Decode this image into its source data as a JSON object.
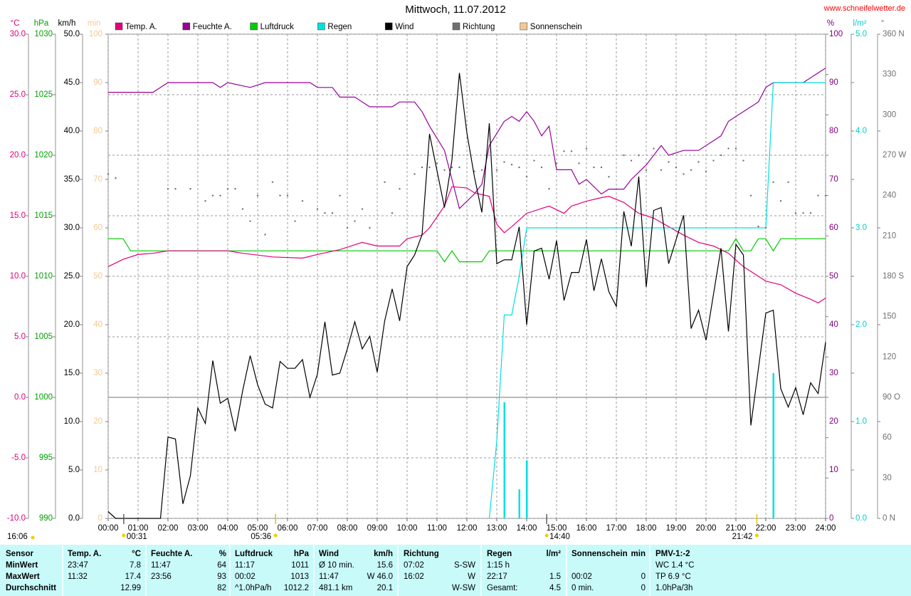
{
  "chart_data": {
    "type": "line",
    "title": "Mittwoch, 11.07.2012",
    "source": "www.schneifelwetter.de",
    "corner_label": "16:06",
    "xlim": [
      0,
      24
    ],
    "xticks": [
      {
        "value": 0,
        "label": "00:00"
      },
      {
        "value": 1,
        "label": "01:00"
      },
      {
        "value": 2,
        "label": "02:00"
      },
      {
        "value": 3,
        "label": "03:00"
      },
      {
        "value": 4,
        "label": "04:00"
      },
      {
        "value": 5,
        "label": "05:00"
      },
      {
        "value": 6,
        "label": "06:00"
      },
      {
        "value": 7,
        "label": "07:00"
      },
      {
        "value": 8,
        "label": "08:00"
      },
      {
        "value": 9,
        "label": "09:00"
      },
      {
        "value": 10,
        "label": "10:00"
      },
      {
        "value": 11,
        "label": "11:00"
      },
      {
        "value": 12,
        "label": "12:00"
      },
      {
        "value": 13,
        "label": "13:00"
      },
      {
        "value": 14,
        "label": "14:00"
      },
      {
        "value": 15,
        "label": "15:00"
      },
      {
        "value": 16,
        "label": "16:00"
      },
      {
        "value": 17,
        "label": "17:00"
      },
      {
        "value": 18,
        "label": "18:00"
      },
      {
        "value": 19,
        "label": "19:00"
      },
      {
        "value": 20,
        "label": "20:00"
      },
      {
        "value": 21,
        "label": "21:00"
      },
      {
        "value": 22,
        "label": "22:00"
      },
      {
        "value": 23,
        "label": "23:00"
      },
      {
        "value": 24,
        "label": "24:00"
      }
    ],
    "grid": true,
    "sun_events": [
      {
        "value": 0.52,
        "label": "00:31"
      },
      {
        "value": 5.6,
        "label": "05:36"
      },
      {
        "value": 14.67,
        "label": "14:40"
      },
      {
        "value": 21.7,
        "label": "21:42"
      }
    ],
    "axes": [
      {
        "unit": "°C",
        "color": "#e0007a",
        "side": "left",
        "lim": [
          -10,
          30
        ],
        "grid": true,
        "ticks": [
          {
            "value": 30,
            "label": "30.0"
          },
          {
            "value": 25,
            "label": "25.0"
          },
          {
            "value": 20,
            "label": "20.0"
          },
          {
            "value": 15,
            "label": "15.0"
          },
          {
            "value": 10,
            "label": "10.0"
          },
          {
            "value": 5,
            "label": "5.0"
          },
          {
            "value": 0,
            "label": "0.0"
          },
          {
            "value": -5,
            "label": "-5.0"
          },
          {
            "value": -10,
            "label": "-10.0"
          }
        ]
      },
      {
        "unit": "hPa",
        "color": "#00a000",
        "side": "left",
        "lim": [
          990,
          1030
        ],
        "ticks": [
          1030,
          1025,
          1020,
          1015,
          1010,
          1005,
          1000,
          995,
          990
        ]
      },
      {
        "unit": "km/h",
        "color": "#000000",
        "side": "left",
        "lim": [
          0,
          50
        ],
        "ticks": [
          {
            "value": 50,
            "label": "50.0"
          },
          {
            "value": 45,
            "label": "45.0"
          },
          {
            "value": 40,
            "label": "40.0"
          },
          {
            "value": 35,
            "label": "35.0"
          },
          {
            "value": 30,
            "label": "30.0"
          },
          {
            "value": 25,
            "label": "25.0"
          },
          {
            "value": 20,
            "label": "20.0"
          },
          {
            "value": 15,
            "label": "15.0"
          },
          {
            "value": 10,
            "label": "10.0"
          },
          {
            "value": 5,
            "label": "5.0"
          },
          {
            "value": 0,
            "label": "0.0"
          }
        ]
      },
      {
        "unit": "min",
        "color": "#f5c890",
        "side": "left",
        "lim": [
          0,
          100
        ],
        "ticks": [
          100,
          90,
          80,
          70,
          60,
          50,
          40,
          30,
          20,
          10,
          0
        ]
      },
      {
        "unit": "%",
        "color": "#800080",
        "side": "right",
        "lim": [
          0,
          100
        ],
        "ticks": [
          100,
          90,
          80,
          70,
          60,
          50,
          40,
          30,
          20,
          10,
          0
        ]
      },
      {
        "unit": "l/m²",
        "color": "#00d0d0",
        "side": "right",
        "lim": [
          0,
          5
        ],
        "ticks": [
          {
            "value": 5,
            "label": "5.0"
          },
          {
            "value": 4,
            "label": "4.0"
          },
          {
            "value": 3,
            "label": "3.0"
          },
          {
            "value": 2,
            "label": "2.0"
          },
          {
            "value": 1,
            "label": "1.0"
          },
          {
            "value": 0,
            "label": "0.0"
          }
        ]
      },
      {
        "unit": "°",
        "color": "#707070",
        "side": "right",
        "lim": [
          0,
          360
        ],
        "ticks": [
          {
            "value": 360,
            "label": "360 N"
          },
          330,
          300,
          {
            "value": 270,
            "label": "270 W"
          },
          240,
          210,
          {
            "value": 180,
            "label": "180 S"
          },
          150,
          120,
          {
            "value": 90,
            "label": "90 O"
          },
          60,
          30,
          {
            "value": 0,
            "label": "0 N"
          }
        ]
      }
    ],
    "series": [
      {
        "name": "Temp. A.",
        "color": "#e0007a",
        "axis": "°C",
        "style": "line",
        "x": [
          0,
          0.5,
          1,
          1.5,
          2,
          4,
          4.5,
          5.5,
          6.5,
          7,
          7.75,
          8.5,
          9,
          9.75,
          10,
          10.5,
          10.75,
          11.25,
          11.5,
          12,
          12.25,
          12.75,
          13,
          13.25,
          13.5,
          14,
          14.5,
          14.75,
          15.25,
          15.5,
          16,
          16.5,
          16.75,
          17.25,
          17.75,
          18.25,
          18.75,
          19.25,
          19.75,
          20.25,
          20.75,
          21.25,
          21.75,
          22,
          22.5,
          23,
          23.5,
          23.75,
          24
        ],
        "values": [
          10.8,
          11.4,
          11.8,
          11.9,
          12.1,
          12.1,
          11.9,
          11.6,
          11.5,
          11.8,
          12.2,
          12.8,
          12.5,
          12.5,
          13.1,
          13.4,
          14.0,
          15.8,
          17.4,
          17.3,
          16.9,
          16.6,
          14.3,
          13.6,
          14.1,
          15.2,
          15.6,
          15.8,
          15.2,
          15.8,
          16.2,
          16.5,
          16.6,
          16.1,
          15.2,
          14.8,
          14.1,
          13.4,
          12.8,
          12.5,
          11.9,
          10.8,
          10.0,
          9.6,
          9.3,
          8.6,
          8.1,
          7.8,
          8.2
        ]
      },
      {
        "name": "Feuchte A.",
        "color": "#990099",
        "axis": "%",
        "style": "line",
        "x": [
          0,
          1.5,
          2,
          3.5,
          3.75,
          4,
          4.75,
          5.25,
          6.75,
          7,
          7.5,
          7.75,
          8.25,
          8.75,
          9.5,
          9.75,
          10.25,
          10.5,
          10.75,
          11.25,
          11.5,
          11.75,
          12.25,
          12.5,
          12.75,
          13.25,
          13.5,
          13.75,
          14,
          14.25,
          14.5,
          14.75,
          15,
          15.5,
          15.75,
          16,
          16.5,
          16.75,
          17.25,
          17.5,
          18,
          18.5,
          18.75,
          19.25,
          19.75,
          20.25,
          20.5,
          20.75,
          21.25,
          21.75,
          22,
          22.25,
          23.25,
          23.75,
          24
        ],
        "values": [
          88,
          88,
          90,
          90,
          89,
          90,
          89,
          90,
          90,
          89,
          89,
          87,
          87,
          85,
          85,
          86,
          86,
          84,
          81,
          76,
          70,
          64,
          67,
          69,
          77,
          82,
          83,
          82,
          84,
          82,
          79,
          81,
          72,
          72,
          69,
          70,
          67,
          68,
          68,
          70,
          73,
          77,
          75,
          76,
          76,
          78,
          79,
          82,
          84,
          86,
          89,
          90,
          90,
          92,
          93
        ]
      },
      {
        "name": "Luftdruck",
        "color": "#00cc00",
        "axis": "hPa",
        "style": "line",
        "x": [
          0,
          0.5,
          0.75,
          11,
          11.25,
          11.5,
          11.75,
          12.5,
          12.75,
          20.75,
          21,
          21.25,
          21.5,
          21.75,
          22,
          22.25,
          22.5,
          24
        ],
        "values": [
          1013.1,
          1013.1,
          1012.1,
          1012.1,
          1011.2,
          1012.1,
          1011.2,
          1011.2,
          1012.1,
          1012.1,
          1013.1,
          1012.1,
          1012.1,
          1013.1,
          1013.1,
          1012.1,
          1013.1,
          1013.1
        ]
      },
      {
        "name": "Regen",
        "color": "#00e0e0",
        "axis": "l/m²",
        "style": "line",
        "x": [
          12.75,
          13,
          13.25,
          13.5,
          13.75,
          14,
          22,
          22.25,
          24
        ],
        "values": [
          0,
          0.8,
          2.1,
          2.1,
          2.5,
          3.0,
          3.0,
          4.5,
          4.5
        ],
        "bars": {
          "x": [
            13.25,
            13.75,
            14,
            22.25
          ],
          "values": [
            1.2,
            0.3,
            0.6,
            1.5
          ]
        }
      },
      {
        "name": "Wind",
        "color": "#000000",
        "axis": "km/h",
        "style": "line",
        "x": [
          0,
          0.25,
          1.75,
          2,
          2.25,
          2.5,
          2.75,
          3,
          3.25,
          3.5,
          3.75,
          4,
          4.25,
          4.5,
          4.75,
          5,
          5.25,
          5.5,
          5.75,
          6,
          6.25,
          6.5,
          6.75,
          7,
          7.25,
          7.5,
          7.75,
          8,
          8.25,
          8.5,
          8.75,
          9,
          9.25,
          9.5,
          9.75,
          10,
          10.25,
          10.5,
          10.75,
          11.25,
          11.5,
          11.75,
          12,
          12.25,
          12.5,
          12.75,
          13,
          13.25,
          13.5,
          13.75,
          14,
          14.25,
          14.5,
          14.75,
          15,
          15.25,
          15.5,
          15.75,
          16,
          16.25,
          16.5,
          16.75,
          17,
          17.25,
          17.5,
          17.75,
          18,
          18.25,
          18.5,
          18.75,
          19.25,
          19.5,
          19.75,
          20,
          20.5,
          20.75,
          21,
          21.25,
          21.5,
          22,
          22.25,
          22.5,
          22.75,
          23,
          23.25,
          23.5,
          23.75,
          24
        ],
        "values": [
          0.7,
          0,
          0,
          8.4,
          8.2,
          1.5,
          4.4,
          11.4,
          9.8,
          16.3,
          11.9,
          12.4,
          9.0,
          13.2,
          16.8,
          13.8,
          11.8,
          11.4,
          16.2,
          15.5,
          15.5,
          16.4,
          12.5,
          14.9,
          20.3,
          14.8,
          15.0,
          17.5,
          20.3,
          17.5,
          18.8,
          15.1,
          20.4,
          23.7,
          20.4,
          26.0,
          27.2,
          29.3,
          39.7,
          32.1,
          37.0,
          46.0,
          39.8,
          35.3,
          31.6,
          40.8,
          26.3,
          26.7,
          26.7,
          30.1,
          20.0,
          27.6,
          27.9,
          24.7,
          28.7,
          22.5,
          25.4,
          25.4,
          28.8,
          23.5,
          26.8,
          23.4,
          21.9,
          31.7,
          28.1,
          35.3,
          23.9,
          31.8,
          32.1,
          26.3,
          31.3,
          19.6,
          21.5,
          18.4,
          27.9,
          19.3,
          28.3,
          27.2,
          9.6,
          21.2,
          21.5,
          13.4,
          11.5,
          13.5,
          10.7,
          14.0,
          12.9,
          18.2
        ]
      },
      {
        "name": "Richtung",
        "color": "#707070",
        "axis": "°",
        "style": "points",
        "x": [
          0,
          0.25,
          2,
          2.25,
          2.75,
          3.25,
          3.5,
          3.75,
          4,
          4.25,
          4.5,
          4.75,
          5,
          5.25,
          5.5,
          5.75,
          6,
          6.25,
          6.5,
          7,
          7.25,
          7.5,
          7.75,
          8,
          8.25,
          8.5,
          8.75,
          9.25,
          9.5,
          9.75,
          10.25,
          10.5,
          10.75,
          11,
          11.25,
          11.5,
          11.75,
          12.25,
          12.5,
          13,
          13.25,
          13.5,
          13.75,
          14,
          14.25,
          14.5,
          14.75,
          15,
          15.25,
          15.5,
          15.75,
          16,
          16.25,
          16.5,
          16.75,
          17.25,
          17.5,
          17.75,
          18,
          18.25,
          18.5,
          18.75,
          19,
          19.25,
          19.5,
          19.75,
          20,
          20.25,
          20.5,
          20.75,
          21,
          21.25,
          21.5,
          21.75,
          22,
          22.25,
          22.5,
          22.75,
          23,
          23.25,
          23.5,
          23.75,
          24
        ],
        "values": [
          256,
          253,
          245,
          245,
          245,
          236,
          240,
          240,
          245,
          245,
          230,
          221,
          240,
          211,
          250,
          240,
          240,
          221,
          236,
          230,
          227,
          227,
          240,
          216,
          221,
          230,
          216,
          250,
          227,
          245,
          256,
          261,
          261,
          264,
          259,
          261,
          261,
          258,
          259,
          259,
          265,
          263,
          261,
          254,
          266,
          261,
          245,
          264,
          273,
          273,
          264,
          275,
          261,
          261,
          254,
          270,
          266,
          270,
          259,
          275,
          259,
          265,
          261,
          256,
          259,
          265,
          258,
          266,
          270,
          275,
          275,
          266,
          240,
          217,
          216,
          250,
          236,
          250,
          227,
          227,
          227,
          240,
          240
        ]
      },
      {
        "name": "Sonnenschein",
        "color": "#f5c890",
        "axis": "min",
        "style": "line",
        "x": [],
        "values": []
      }
    ]
  },
  "table": {
    "header": [
      {
        "left": "Sensor"
      },
      {
        "left": "Temp. A.",
        "right": "°C"
      },
      {
        "left": "Feuchte A.",
        "right": "%"
      },
      {
        "left": "Luftdruck",
        "right": "hPa"
      },
      {
        "left": "Wind",
        "right": "km/h"
      },
      {
        "left": "Richtung"
      },
      {
        "left": "Regen",
        "right": "l/m²"
      },
      {
        "left": "Sonnenschein",
        "right": "min"
      },
      {
        "left": "PMV-1:-2"
      }
    ],
    "rows": [
      [
        {
          "left": "MinWert"
        },
        {
          "left": "23:47",
          "right": "7.8"
        },
        {
          "left": "11:47",
          "right": "64"
        },
        {
          "left": "11:17",
          "right": "1011"
        },
        {
          "left": "Ø 10 min.",
          "right": "15.6"
        },
        {
          "left": "07:02",
          "right": "S-SW"
        },
        {
          "left": "1:15 h"
        },
        {},
        {
          "left": "WC 1.4 °C"
        }
      ],
      [
        {
          "left": "MaxWert"
        },
        {
          "left": "11:32",
          "right": "17.4"
        },
        {
          "left": "23:56",
          "right": "93"
        },
        {
          "left": "00:02",
          "right": "1013"
        },
        {
          "left": "11:47",
          "right": "W 46.0"
        },
        {
          "left": "16:02",
          "right": "W"
        },
        {
          "left": "22:17",
          "right": "1.5"
        },
        {
          "left": "00:02",
          "right": "0"
        },
        {
          "left": "TP 6.9 °C"
        }
      ],
      [
        {
          "left": "Durchschnitt"
        },
        {
          "right": "12.99"
        },
        {
          "right": "82"
        },
        {
          "left": "^1.0hPa/h",
          "right": "1012.2"
        },
        {
          "left": "481.1 km",
          "right": "20.1"
        },
        {
          "right": "W-SW"
        },
        {
          "left": "Gesamt:",
          "right": "4.5"
        },
        {
          "left": "0 min.",
          "right": "0"
        },
        {
          "left": "1.0hPa/3h"
        }
      ]
    ]
  }
}
